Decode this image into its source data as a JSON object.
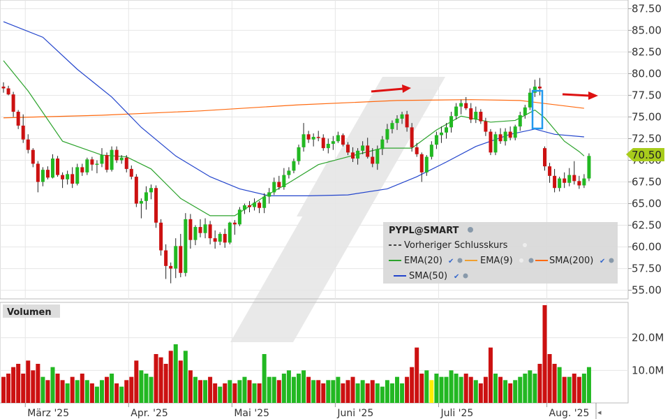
{
  "chart_data": {
    "type": "candlestick",
    "price_axis": {
      "ylim": [
        54.0,
        88.5
      ],
      "ticks": [
        "87.50",
        "85.00",
        "82.50",
        "80.00",
        "77.50",
        "75.00",
        "72.50",
        "70.00",
        "67.50",
        "65.00",
        "62.50",
        "60.00",
        "57.50",
        "55.00"
      ],
      "current_price_label": "70.50"
    },
    "volume_axis": {
      "label": "Volumen",
      "ylim": [
        0,
        30
      ],
      "ticks": [
        "20.0M",
        "10.0M"
      ]
    },
    "x_labels": [
      {
        "label": "März '25",
        "index": 5
      },
      {
        "label": "Apr. '25",
        "index": 26
      },
      {
        "label": "Mai '25",
        "index": 47
      },
      {
        "label": "Juni '25",
        "index": 68
      },
      {
        "label": "Juli '25",
        "index": 89
      },
      {
        "label": "Aug. '25",
        "index": 111
      }
    ],
    "candles": [
      [
        78.5,
        79.0,
        77.8,
        78.3,
        8
      ],
      [
        78.3,
        78.6,
        77.5,
        77.6,
        9
      ],
      [
        77.6,
        77.9,
        75.0,
        75.6,
        11
      ],
      [
        75.6,
        75.8,
        73.6,
        74.0,
        12
      ],
      [
        74.0,
        75.3,
        72.0,
        72.4,
        9
      ],
      [
        72.4,
        73.0,
        70.8,
        71.2,
        13
      ],
      [
        71.2,
        71.4,
        69.2,
        69.6,
        10
      ],
      [
        69.6,
        69.9,
        66.3,
        67.5,
        12
      ],
      [
        67.5,
        69.2,
        67.0,
        68.9,
        8
      ],
      [
        68.9,
        69.3,
        67.8,
        68.0,
        7
      ],
      [
        68.0,
        70.7,
        67.9,
        70.2,
        11
      ],
      [
        70.2,
        70.5,
        68.1,
        68.3,
        9
      ],
      [
        68.3,
        68.6,
        66.8,
        67.8,
        7
      ],
      [
        67.8,
        68.8,
        67.2,
        68.4,
        6
      ],
      [
        68.4,
        69.2,
        66.8,
        67.3,
        8
      ],
      [
        67.3,
        69.6,
        67.1,
        69.2,
        7
      ],
      [
        69.2,
        69.6,
        68.2,
        68.6,
        9
      ],
      [
        68.6,
        70.3,
        68.3,
        70.1,
        7
      ],
      [
        70.1,
        70.4,
        68.8,
        69.5,
        6
      ],
      [
        69.5,
        70.0,
        68.5,
        69.6,
        5
      ],
      [
        69.6,
        71.4,
        69.2,
        70.6,
        7
      ],
      [
        70.6,
        70.9,
        68.6,
        68.9,
        8
      ],
      [
        68.9,
        71.6,
        68.7,
        71.2,
        9
      ],
      [
        71.2,
        71.6,
        69.7,
        70.0,
        6
      ],
      [
        70.0,
        70.6,
        69.6,
        70.3,
        5
      ],
      [
        70.3,
        70.6,
        68.6,
        69.0,
        7
      ],
      [
        69.0,
        69.4,
        67.8,
        68.1,
        8
      ],
      [
        68.1,
        68.4,
        64.6,
        65.0,
        13
      ],
      [
        65.0,
        65.6,
        63.3,
        65.3,
        10
      ],
      [
        65.3,
        67.0,
        64.3,
        66.3,
        9
      ],
      [
        66.3,
        67.2,
        65.5,
        66.8,
        8
      ],
      [
        66.8,
        67.1,
        62.2,
        62.8,
        15
      ],
      [
        62.8,
        63.2,
        59.0,
        59.6,
        14
      ],
      [
        59.6,
        60.3,
        56.3,
        57.8,
        12
      ],
      [
        57.8,
        58.2,
        55.8,
        57.5,
        16
      ],
      [
        57.5,
        61.0,
        56.4,
        60.1,
        18
      ],
      [
        60.1,
        61.5,
        56.5,
        57.0,
        13
      ],
      [
        57.0,
        63.9,
        56.6,
        63.2,
        16
      ],
      [
        63.2,
        63.8,
        59.8,
        60.8,
        10
      ],
      [
        60.8,
        62.5,
        60.2,
        62.3,
        8
      ],
      [
        62.3,
        63.2,
        61.1,
        61.6,
        7
      ],
      [
        61.6,
        63.3,
        61.0,
        62.6,
        7
      ],
      [
        62.6,
        63.0,
        60.3,
        61.0,
        8
      ],
      [
        61.0,
        61.9,
        59.8,
        60.6,
        6
      ],
      [
        60.6,
        61.7,
        60.2,
        61.5,
        5
      ],
      [
        61.5,
        62.1,
        59.9,
        60.5,
        6
      ],
      [
        60.5,
        62.9,
        60.3,
        62.8,
        7
      ],
      [
        62.8,
        63.1,
        61.4,
        62.6,
        6
      ],
      [
        62.6,
        64.6,
        62.4,
        64.3,
        7
      ],
      [
        64.3,
        65.0,
        63.8,
        64.8,
        8
      ],
      [
        64.8,
        65.3,
        64.0,
        64.6,
        7
      ],
      [
        64.6,
        65.6,
        64.2,
        65.1,
        6
      ],
      [
        65.1,
        65.3,
        63.9,
        64.5,
        6
      ],
      [
        64.5,
        66.2,
        63.9,
        65.8,
        15
      ],
      [
        65.8,
        66.8,
        65.0,
        66.3,
        8
      ],
      [
        66.3,
        68.0,
        66.0,
        67.5,
        8
      ],
      [
        67.5,
        68.2,
        66.6,
        66.9,
        7
      ],
      [
        66.9,
        69.1,
        66.6,
        68.3,
        9
      ],
      [
        68.3,
        69.2,
        67.9,
        68.8,
        10
      ],
      [
        68.8,
        70.2,
        68.5,
        69.9,
        8
      ],
      [
        69.9,
        71.8,
        69.5,
        71.5,
        9
      ],
      [
        71.5,
        74.3,
        71.0,
        73.0,
        10
      ],
      [
        73.0,
        73.4,
        72.0,
        72.4,
        8
      ],
      [
        72.4,
        73.1,
        71.6,
        72.7,
        7
      ],
      [
        72.7,
        73.4,
        72.2,
        72.6,
        7
      ],
      [
        72.6,
        73.0,
        71.1,
        71.4,
        6
      ],
      [
        71.4,
        72.5,
        70.8,
        71.9,
        7
      ],
      [
        71.9,
        72.8,
        71.2,
        72.2,
        7
      ],
      [
        72.2,
        73.3,
        72.0,
        72.9,
        8
      ],
      [
        72.9,
        73.1,
        71.6,
        71.8,
        6
      ],
      [
        71.8,
        72.1,
        70.6,
        70.9,
        7
      ],
      [
        70.9,
        71.5,
        69.8,
        70.2,
        8
      ],
      [
        70.2,
        71.4,
        69.5,
        71.1,
        6
      ],
      [
        71.1,
        72.2,
        70.7,
        71.7,
        7
      ],
      [
        71.7,
        72.6,
        70.2,
        70.4,
        6
      ],
      [
        70.4,
        71.4,
        69.2,
        69.6,
        7
      ],
      [
        69.6,
        71.7,
        68.9,
        71.3,
        6
      ],
      [
        71.3,
        72.8,
        70.6,
        72.4,
        5
      ],
      [
        72.4,
        74.2,
        72.0,
        73.6,
        7
      ],
      [
        73.6,
        74.6,
        73.1,
        74.3,
        6
      ],
      [
        74.3,
        75.2,
        73.5,
        74.8,
        8
      ],
      [
        74.8,
        75.6,
        74.2,
        75.3,
        6
      ],
      [
        75.3,
        75.7,
        73.3,
        73.8,
        8
      ],
      [
        73.8,
        74.3,
        71.0,
        71.5,
        11
      ],
      [
        71.5,
        72.0,
        70.4,
        70.7,
        17
      ],
      [
        70.7,
        70.9,
        67.5,
        68.6,
        9
      ],
      [
        68.6,
        70.6,
        68.2,
        70.4,
        10
      ],
      [
        70.4,
        72.2,
        70.1,
        71.8,
        7
      ],
      [
        71.8,
        73.3,
        71.3,
        72.9,
        9
      ],
      [
        72.9,
        73.9,
        72.0,
        73.2,
        8
      ],
      [
        73.2,
        74.3,
        72.5,
        73.8,
        8
      ],
      [
        73.8,
        75.6,
        73.2,
        75.1,
        10
      ],
      [
        75.1,
        76.6,
        74.7,
        76.2,
        9
      ],
      [
        76.2,
        77.0,
        75.3,
        76.6,
        8
      ],
      [
        76.6,
        77.3,
        75.8,
        76.0,
        9
      ],
      [
        76.0,
        76.6,
        74.3,
        74.7,
        8
      ],
      [
        74.7,
        76.2,
        74.3,
        75.6,
        7
      ],
      [
        75.6,
        75.9,
        74.2,
        74.5,
        6
      ],
      [
        74.5,
        74.9,
        72.8,
        73.3,
        8
      ],
      [
        73.3,
        73.6,
        70.6,
        70.9,
        17
      ],
      [
        70.9,
        73.3,
        70.6,
        73.0,
        9
      ],
      [
        73.0,
        73.7,
        71.9,
        72.2,
        8
      ],
      [
        72.2,
        73.7,
        71.7,
        73.3,
        7
      ],
      [
        73.3,
        73.9,
        72.3,
        72.6,
        6
      ],
      [
        72.6,
        74.1,
        72.3,
        73.9,
        7
      ],
      [
        73.9,
        75.6,
        73.4,
        75.2,
        8
      ],
      [
        75.2,
        76.4,
        74.8,
        76.1,
        9
      ],
      [
        76.1,
        78.3,
        75.8,
        77.8,
        10
      ],
      [
        77.8,
        79.3,
        77.3,
        78.5,
        9
      ],
      [
        78.5,
        79.5,
        77.5,
        78.3,
        12
      ],
      [
        71.4,
        71.6,
        68.8,
        69.3,
        30
      ],
      [
        69.3,
        69.7,
        67.4,
        68.2,
        15
      ],
      [
        68.2,
        69.0,
        66.3,
        66.8,
        12
      ],
      [
        66.8,
        68.1,
        66.4,
        67.9,
        11
      ],
      [
        67.9,
        68.6,
        66.8,
        67.4,
        8
      ],
      [
        67.4,
        69.1,
        67.0,
        68.3,
        8
      ],
      [
        68.3,
        69.9,
        67.2,
        67.6,
        9
      ],
      [
        67.6,
        68.2,
        66.7,
        67.1,
        8
      ],
      [
        67.1,
        68.4,
        66.8,
        67.9,
        9
      ],
      [
        67.9,
        70.8,
        67.6,
        70.5,
        11
      ]
    ],
    "overlays": {
      "sma200": [
        [
          0,
          74.9
        ],
        [
          20,
          75.2
        ],
        [
          40,
          75.7
        ],
        [
          60,
          76.4
        ],
        [
          80,
          76.9
        ],
        [
          95,
          77.0
        ],
        [
          105,
          76.9
        ],
        [
          118,
          76.0
        ]
      ],
      "sma50": [
        [
          0,
          86.0
        ],
        [
          8,
          84.2
        ],
        [
          15,
          80.5
        ],
        [
          22,
          77.3
        ],
        [
          28,
          73.8
        ],
        [
          35,
          70.5
        ],
        [
          42,
          68.1
        ],
        [
          48,
          66.7
        ],
        [
          54,
          65.9
        ],
        [
          62,
          65.9
        ],
        [
          70,
          66.0
        ],
        [
          78,
          66.7
        ],
        [
          84,
          68.1
        ],
        [
          90,
          69.8
        ],
        [
          96,
          71.6
        ],
        [
          103,
          73.0
        ],
        [
          108,
          73.6
        ],
        [
          112,
          73.0
        ],
        [
          118,
          72.7
        ]
      ],
      "ema20": [
        [
          0,
          81.5
        ],
        [
          5,
          78.0
        ],
        [
          12,
          72.2
        ],
        [
          20,
          70.6
        ],
        [
          25,
          70.4
        ],
        [
          30,
          69.0
        ],
        [
          36,
          65.6
        ],
        [
          42,
          63.6
        ],
        [
          47,
          63.6
        ],
        [
          53,
          65.8
        ],
        [
          58,
          67.4
        ],
        [
          64,
          69.5
        ],
        [
          70,
          70.4
        ],
        [
          77,
          71.4
        ],
        [
          83,
          71.4
        ],
        [
          88,
          73.5
        ],
        [
          93,
          75.1
        ],
        [
          99,
          74.4
        ],
        [
          104,
          74.6
        ],
        [
          108,
          75.8
        ],
        [
          110,
          74.9
        ],
        [
          114,
          72.2
        ],
        [
          117,
          71.0
        ],
        [
          118,
          70.5
        ]
      ]
    },
    "legend": {
      "title": "PYPL@SMART",
      "items": [
        {
          "name": "Vorheriger Schlusskurs",
          "color": "#444444",
          "style": "dashed"
        },
        {
          "name": "EMA(20)",
          "color": "#2ca32c"
        },
        {
          "name": "EMA(9)",
          "color": "#f0a030"
        },
        {
          "name": "SMA(200)",
          "color": "#ff6a10"
        },
        {
          "name": "SMA(50)",
          "color": "#2244cc"
        }
      ],
      "placement": "bottom-right"
    },
    "colors": {
      "up": "#22b822",
      "down": "#cc1111",
      "highlight_volume": "#ffee00",
      "annotation": "#dd1111",
      "callout": "#2299ee",
      "price_badge": "#a8cc1c"
    }
  }
}
